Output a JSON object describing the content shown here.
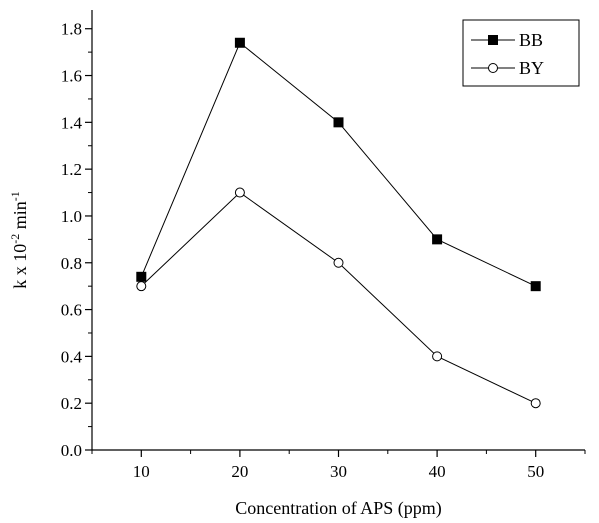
{
  "chart_data": {
    "type": "line",
    "x": [
      10,
      20,
      30,
      40,
      50
    ],
    "series": [
      {
        "name": "BB",
        "marker": "filled-square",
        "values": [
          0.74,
          1.74,
          1.4,
          0.9,
          0.7
        ]
      },
      {
        "name": "BY",
        "marker": "open-circle",
        "values": [
          0.7,
          1.1,
          0.8,
          0.4,
          0.2
        ]
      }
    ],
    "xlabel": "Concentration of APS (ppm)",
    "ylabel": {
      "base": "k x 10",
      "base_exp": "-2",
      "unit": " min",
      "unit_exp": "-1"
    },
    "xlim": [
      5,
      55
    ],
    "ylim": [
      0,
      1.88
    ],
    "x_ticks": [
      "10",
      "20",
      "30",
      "40",
      "50"
    ],
    "y_ticks": [
      "0.0",
      "0.2",
      "0.4",
      "0.6",
      "0.8",
      "1.0",
      "1.2",
      "1.4",
      "1.6",
      "1.8"
    ],
    "grid": false,
    "legend_position": "top-right",
    "colors": {
      "line": "#000000",
      "background": "#ffffff"
    }
  }
}
